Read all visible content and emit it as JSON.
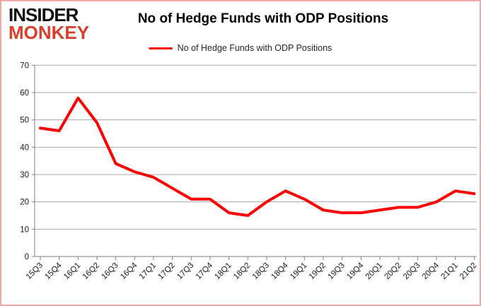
{
  "brand": {
    "line1": "INSIDER",
    "line2": "MONKEY",
    "color1": "#111111",
    "color2": "#d8402c"
  },
  "header": {
    "title": "No of Hedge Funds with ODP Positions"
  },
  "legend": {
    "label": "No of Hedge Funds with ODP Positions",
    "color": "#ff0000"
  },
  "chart_data": {
    "type": "line",
    "title": "No of Hedge Funds with ODP Positions",
    "categories": [
      "15Q3",
      "15Q4",
      "16Q1",
      "16Q2",
      "16Q3",
      "16Q4",
      "17Q1",
      "17Q2",
      "17Q3",
      "17Q4",
      "18Q1",
      "18Q2",
      "18Q3",
      "18Q4",
      "19Q1",
      "19Q2",
      "19Q3",
      "19Q4",
      "20Q1",
      "20Q2",
      "20Q3",
      "20Q4",
      "21Q1",
      "21Q2"
    ],
    "series": [
      {
        "name": "No of Hedge Funds with ODP Positions",
        "color": "#ff0000",
        "values": [
          47,
          46,
          58,
          49,
          34,
          31,
          29,
          25,
          21,
          21,
          16,
          15,
          20,
          24,
          21,
          17,
          16,
          16,
          17,
          18,
          18,
          20,
          24,
          23
        ]
      }
    ],
    "xlabel": "",
    "ylabel": "",
    "ylim": [
      0,
      70
    ],
    "ytick_step": 10,
    "grid": true,
    "legend_position": "top",
    "colors": {
      "gridline": "#a6a6a6",
      "axis": "#7f7f7f",
      "tick_label": "#1a1a1a"
    }
  }
}
